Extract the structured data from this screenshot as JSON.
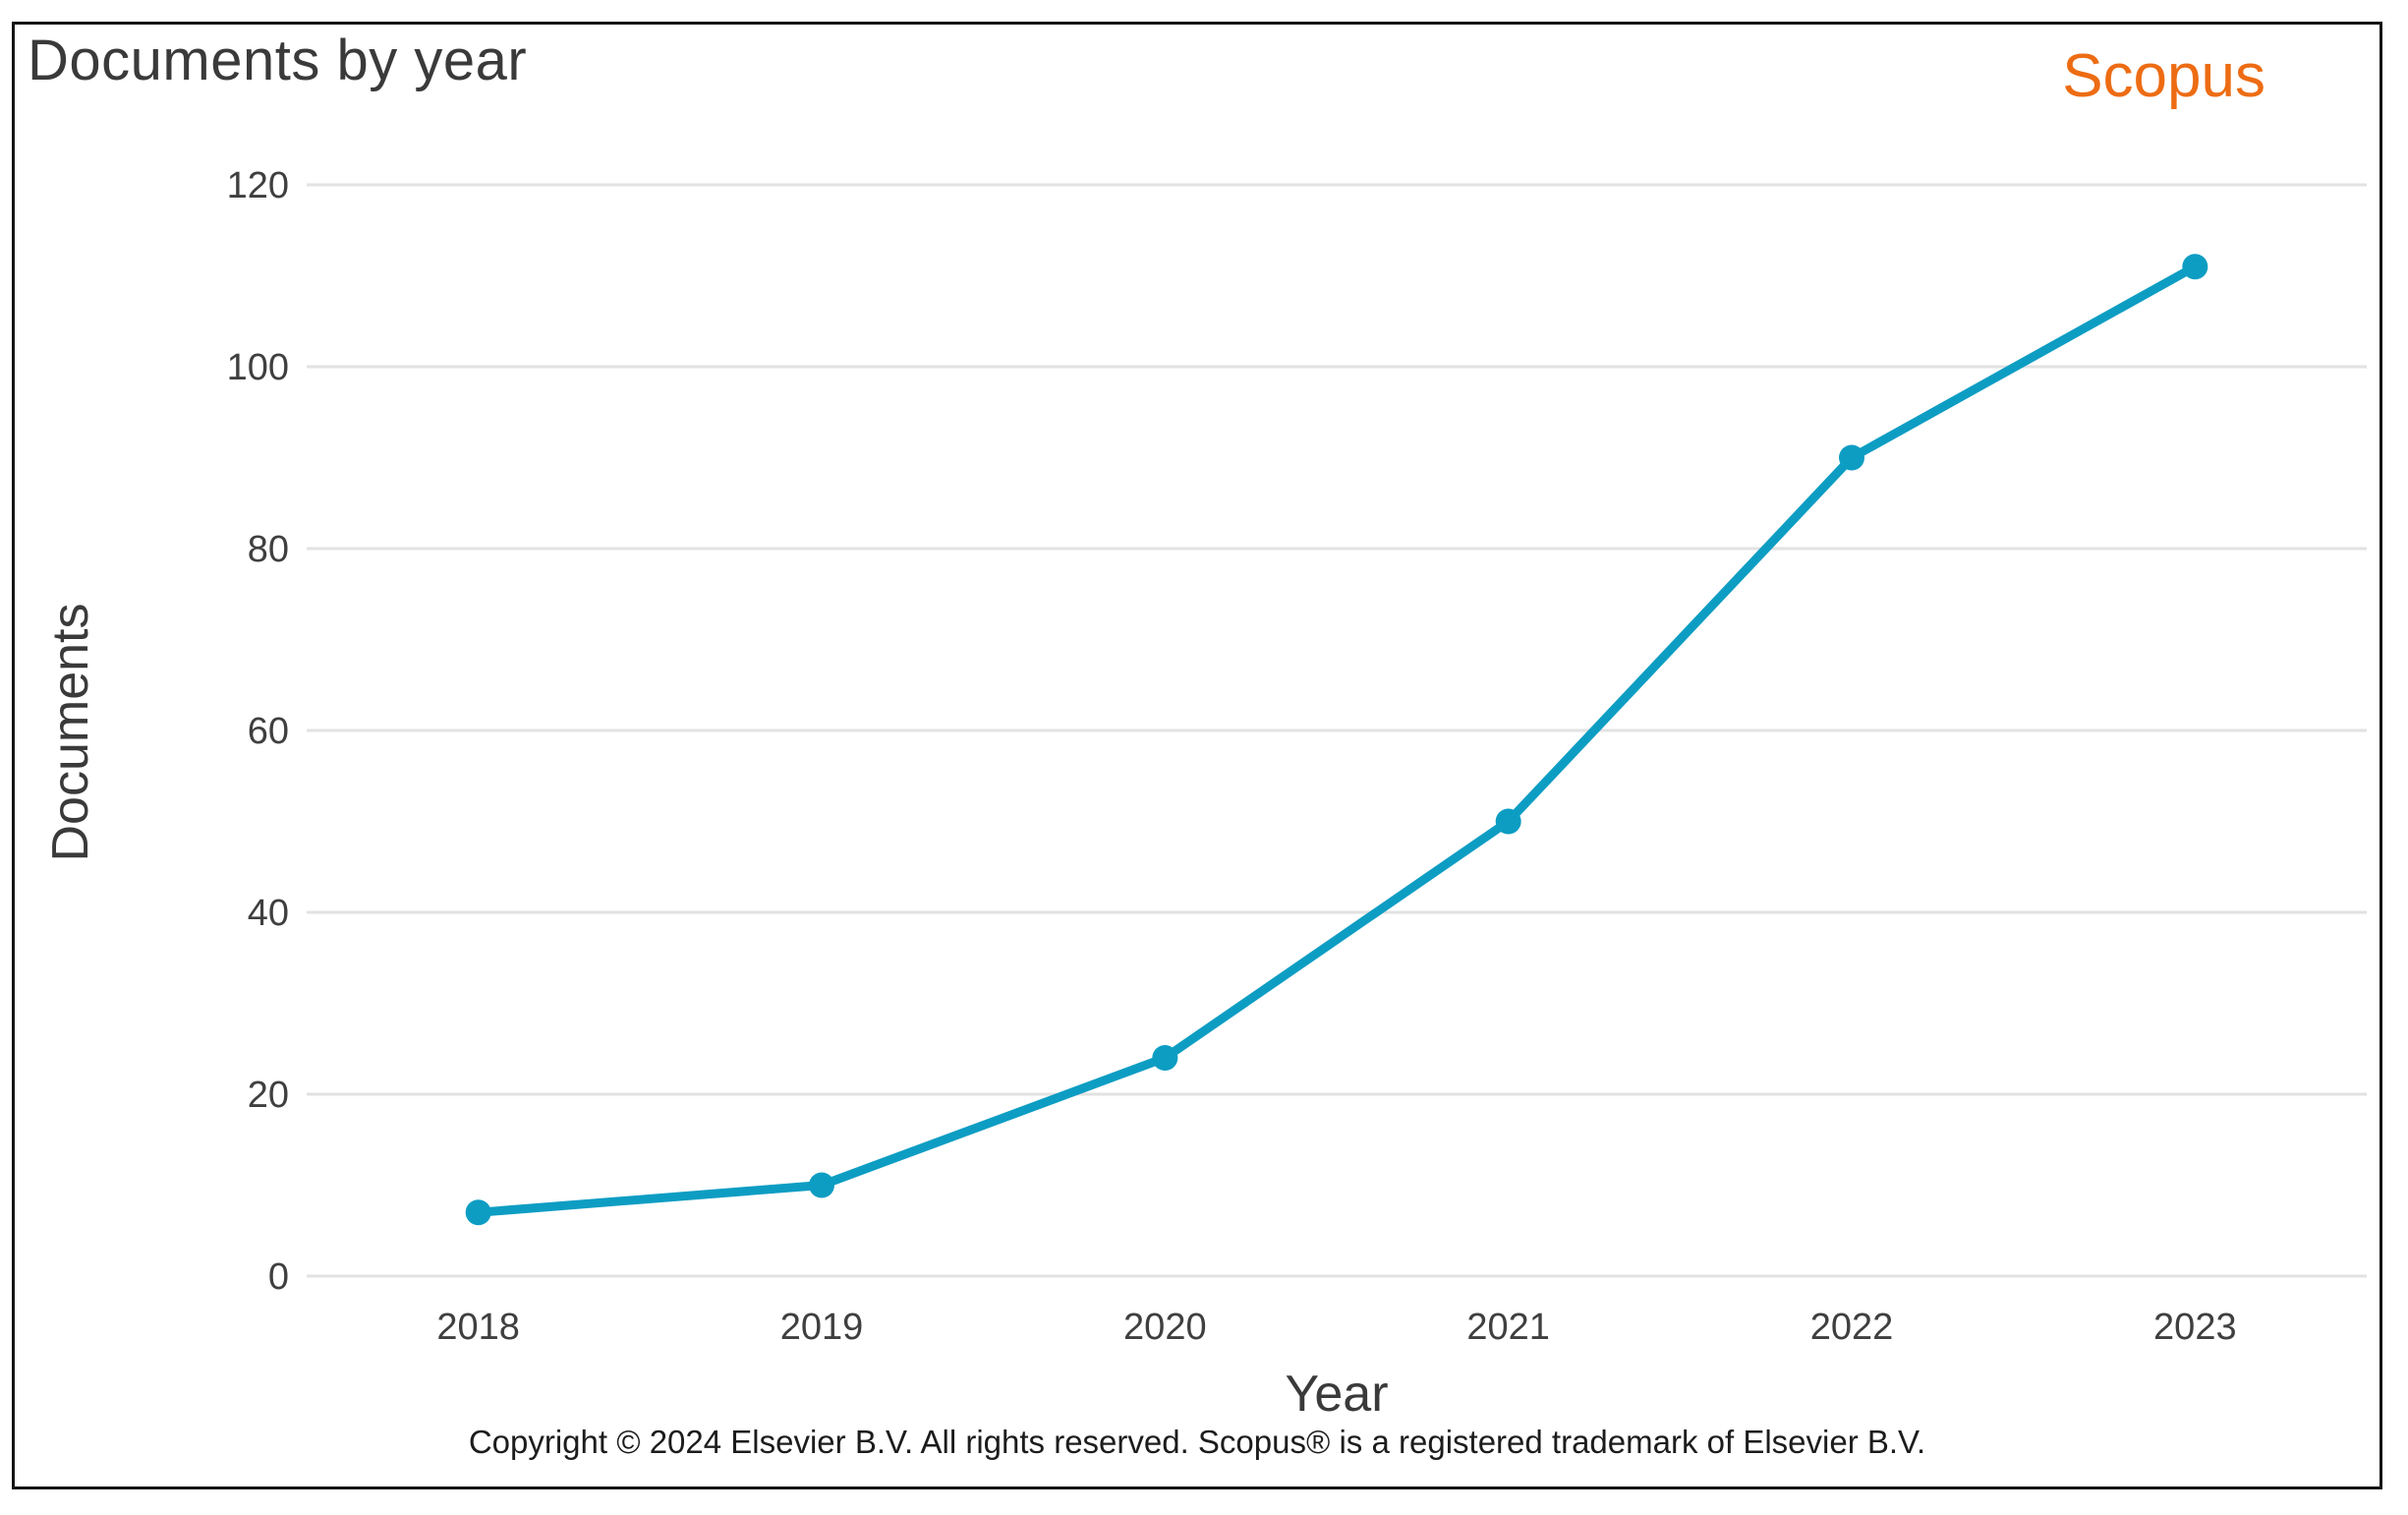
{
  "header": {
    "title": "Documents by year",
    "logo": "Scopus"
  },
  "footer": {
    "copyright": "Copyright © 2024 Elsevier B.V. All rights reserved. Scopus® is a registered trademark of Elsevier B.V."
  },
  "chart_data": {
    "type": "line",
    "categories": [
      "2018",
      "2019",
      "2020",
      "2021",
      "2022",
      "2023"
    ],
    "values": [
      7,
      10,
      24,
      50,
      90,
      111
    ],
    "title": "Documents by year",
    "xlabel": "Year",
    "ylabel": "Documents",
    "ylim": [
      0,
      120
    ],
    "ytick_step": 20,
    "grid": "horizontal",
    "legend": "none",
    "marker": "circle"
  },
  "colors": {
    "line": "#0d9dc3",
    "logo_orange": "#ed6c13",
    "grid": "#e2e2e2",
    "axis_text": "#3f3f3f",
    "heading_text": "#3a3a3a",
    "copyright_text": "#1c1c1c",
    "frame_border": "#141414",
    "background": "#ffffff"
  }
}
